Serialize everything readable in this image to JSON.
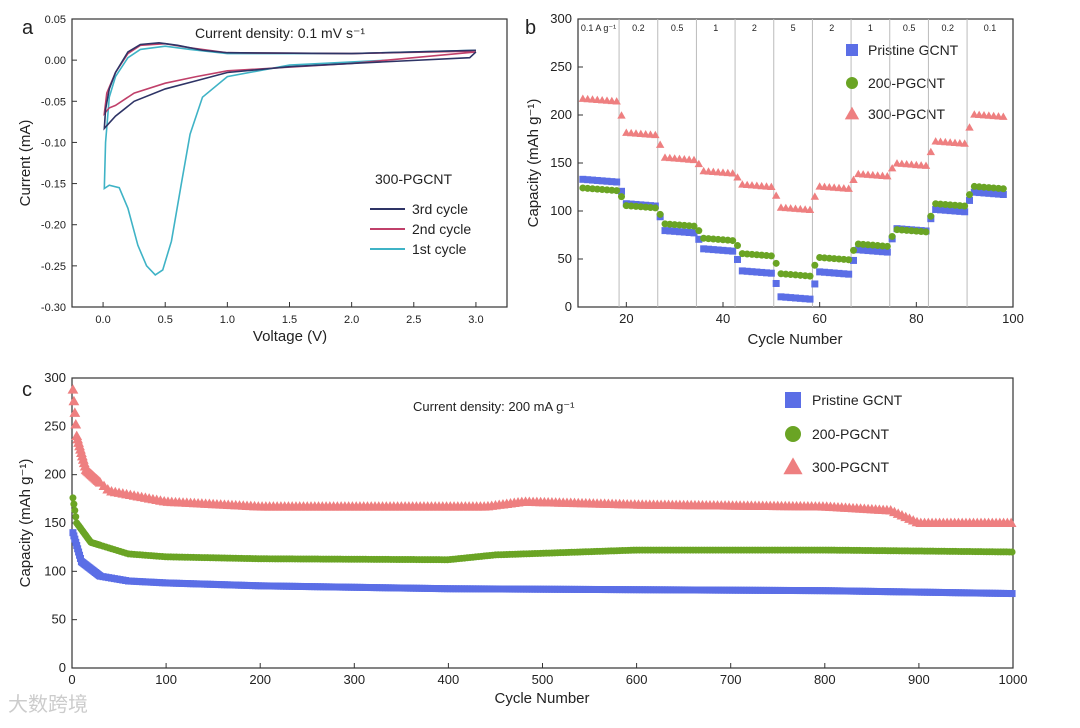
{
  "chart_data": [
    {
      "panel_label": "a",
      "type": "line",
      "title": "",
      "annotation": "Current density: 0.1 mV s⁻¹",
      "xlabel": "Voltage (V)",
      "ylabel": "Current (mA)",
      "xlim": [
        -0.25,
        3.25
      ],
      "ylim": [
        -0.3,
        0.05
      ],
      "xticks": [
        "0.0",
        "0.5",
        "1.0",
        "1.5",
        "2.0",
        "2.5",
        "3.0"
      ],
      "yticks": [
        "0.05",
        "0.00",
        "-0.05",
        "-0.10",
        "-0.15",
        "-0.20",
        "-0.25",
        "-0.30"
      ],
      "legend_title": "300-PGCNT",
      "legend_position": "right",
      "series": [
        {
          "name": "3rd cycle",
          "color": "#2e3466",
          "points": [
            [
              3.0,
              0.01
            ],
            [
              2.95,
              0.003
            ],
            [
              2.0,
              -0.004
            ],
            [
              1.5,
              -0.008
            ],
            [
              1.0,
              -0.015
            ],
            [
              0.75,
              -0.025
            ],
            [
              0.5,
              -0.035
            ],
            [
              0.25,
              -0.05
            ],
            [
              0.1,
              -0.068
            ],
            [
              0.01,
              -0.083
            ],
            [
              0.02,
              -0.06
            ],
            [
              0.05,
              -0.035
            ],
            [
              0.1,
              -0.015
            ],
            [
              0.2,
              0.01
            ],
            [
              0.3,
              0.019
            ],
            [
              0.45,
              0.021
            ],
            [
              0.6,
              0.018
            ],
            [
              0.8,
              0.012
            ],
            [
              1.0,
              0.009
            ],
            [
              2.0,
              0.008
            ],
            [
              3.0,
              0.012
            ]
          ]
        },
        {
          "name": "2nd cycle",
          "color": "#c0406a",
          "points": [
            [
              3.0,
              0.01
            ],
            [
              2.0,
              -0.004
            ],
            [
              1.0,
              -0.013
            ],
            [
              0.75,
              -0.02
            ],
            [
              0.5,
              -0.028
            ],
            [
              0.25,
              -0.04
            ],
            [
              0.1,
              -0.055
            ],
            [
              0.05,
              -0.058
            ],
            [
              0.01,
              -0.065
            ],
            [
              0.03,
              -0.04
            ],
            [
              0.1,
              -0.015
            ],
            [
              0.2,
              0.008
            ],
            [
              0.3,
              0.018
            ],
            [
              0.5,
              0.02
            ],
            [
              0.7,
              0.015
            ],
            [
              1.0,
              0.009
            ],
            [
              2.0,
              0.008
            ],
            [
              3.0,
              0.011
            ]
          ]
        },
        {
          "name": "1st cycle",
          "color": "#3fb3c6",
          "points": [
            [
              2.28,
              0.0
            ],
            [
              1.5,
              -0.006
            ],
            [
              1.0,
              -0.02
            ],
            [
              0.8,
              -0.045
            ],
            [
              0.7,
              -0.09
            ],
            [
              0.63,
              -0.15
            ],
            [
              0.55,
              -0.22
            ],
            [
              0.48,
              -0.255
            ],
            [
              0.42,
              -0.261
            ],
            [
              0.35,
              -0.25
            ],
            [
              0.28,
              -0.225
            ],
            [
              0.2,
              -0.18
            ],
            [
              0.13,
              -0.155
            ],
            [
              0.05,
              -0.152
            ],
            [
              0.01,
              -0.156
            ],
            [
              0.02,
              -0.1
            ],
            [
              0.05,
              -0.045
            ],
            [
              0.1,
              -0.02
            ],
            [
              0.2,
              0.003
            ],
            [
              0.3,
              0.013
            ],
            [
              0.5,
              0.017
            ],
            [
              0.7,
              0.013
            ],
            [
              1.0,
              0.008
            ],
            [
              2.0,
              0.008
            ],
            [
              3.0,
              0.012
            ]
          ]
        }
      ]
    },
    {
      "panel_label": "b",
      "type": "scatter",
      "xlabel": "Cycle Number",
      "ylabel": "Capacity (mAh g⁻¹)",
      "xlim": [
        10,
        100
      ],
      "ylim": [
        0,
        300
      ],
      "xticks": [
        20,
        40,
        60,
        80,
        100
      ],
      "yticks": [
        0,
        50,
        100,
        150,
        200,
        250,
        300
      ],
      "rates": [
        "0.1 A g⁻¹",
        "0.2",
        "0.5",
        "1",
        "2",
        "5",
        "2",
        "1",
        "0.5",
        "0.2",
        "0.1"
      ],
      "rate_boundaries": [
        18.5,
        26.5,
        34.5,
        42.5,
        50.5,
        58.5,
        66.5,
        74.5,
        82.5,
        90.5
      ],
      "cycles_per_rate": 8,
      "first_cycle": 11,
      "legend_position": "top-right",
      "series": [
        {
          "name": "Pristine GCNT",
          "color": "#5b6ee6",
          "marker": "square",
          "plateaus": [
            133,
            108,
            80,
            61,
            38,
            11,
            37,
            60,
            82,
            102,
            120
          ]
        },
        {
          "name": "200-PGCNT",
          "color": "#6aa424",
          "marker": "circle",
          "plateaus": [
            124,
            106,
            87,
            72,
            56,
            35,
            52,
            66,
            81,
            108,
            126
          ]
        },
        {
          "name": "300-PGCNT",
          "color": "#ee7f80",
          "marker": "triangle",
          "plateaus": [
            217,
            182,
            156,
            142,
            128,
            104,
            126,
            139,
            150,
            173,
            201
          ]
        }
      ]
    },
    {
      "panel_label": "c",
      "type": "scatter",
      "annotation": "Current density: 200 mA g⁻¹",
      "xlabel": "Cycle Number",
      "ylabel": "Capacity (mAh g⁻¹)",
      "xlim": [
        0,
        1000
      ],
      "ylim": [
        0,
        300
      ],
      "xticks": [
        0,
        100,
        200,
        300,
        400,
        500,
        600,
        700,
        800,
        900,
        1000
      ],
      "yticks": [
        0,
        50,
        100,
        150,
        200,
        250,
        300
      ],
      "legend_position": "top-right",
      "series": [
        {
          "name": "Pristine GCNT",
          "color": "#5b6ee6",
          "marker": "square",
          "points": [
            [
              1,
              140
            ],
            [
              10,
              110
            ],
            [
              30,
              95
            ],
            [
              60,
              90
            ],
            [
              100,
              88
            ],
            [
              200,
              85
            ],
            [
              400,
              82
            ],
            [
              600,
              81
            ],
            [
              800,
              80
            ],
            [
              1000,
              77
            ]
          ]
        },
        {
          "name": "200-PGCNT",
          "color": "#6aa424",
          "marker": "circle",
          "points": [
            [
              1,
              176
            ],
            [
              5,
              150
            ],
            [
              20,
              130
            ],
            [
              60,
              118
            ],
            [
              100,
              115
            ],
            [
              200,
              113
            ],
            [
              400,
              112
            ],
            [
              450,
              117
            ],
            [
              600,
              122
            ],
            [
              800,
              122
            ],
            [
              1000,
              120
            ]
          ]
        },
        {
          "name": "300-PGCNT",
          "color": "#ee7f80",
          "marker": "triangle",
          "points": [
            [
              1,
              288
            ],
            [
              5,
              240
            ],
            [
              15,
              205
            ],
            [
              40,
              183
            ],
            [
              100,
              172
            ],
            [
              200,
              167
            ],
            [
              440,
              167
            ],
            [
              480,
              172
            ],
            [
              600,
              169
            ],
            [
              800,
              167
            ],
            [
              870,
              163
            ],
            [
              900,
              150
            ],
            [
              1000,
              150
            ]
          ]
        }
      ]
    }
  ],
  "watermark": "大数跨境"
}
